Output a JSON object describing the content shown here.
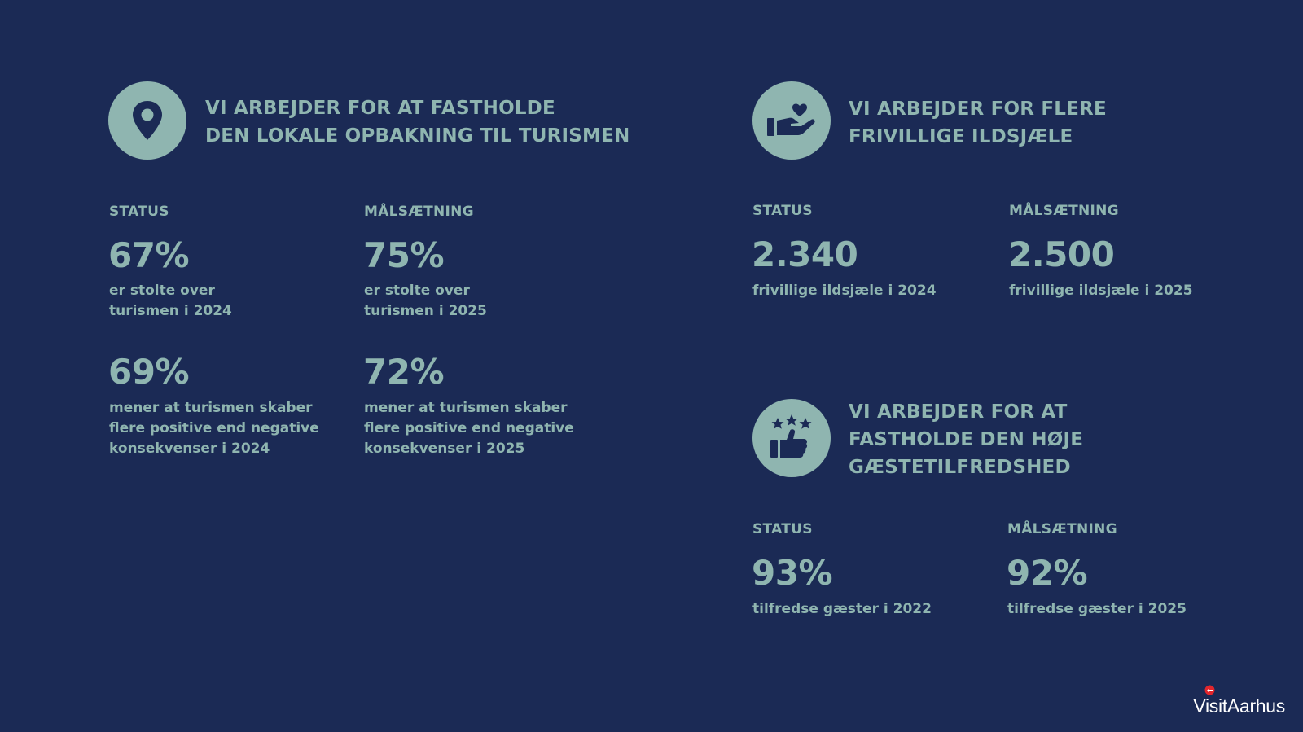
{
  "sections": [
    {
      "icon": "location-pin-icon",
      "heading_lines": [
        "VI ARBEJDER FOR AT FASTHOLDE",
        "DEN LOKALE OPBAKNING TIL TURISMEN"
      ],
      "status_label": "STATUS",
      "goal_label": "MÅLSÆTNING",
      "metrics": [
        {
          "status_value": "67%",
          "status_desc": "er stolte over turismen i 2024",
          "goal_value": "75%",
          "goal_desc": "er stolte over turismen i 2025"
        },
        {
          "status_value": "69%",
          "status_desc": "mener at turismen skaber flere positive end negative konsekvenser i 2024",
          "goal_value": "72%",
          "goal_desc": "mener at turismen skaber flere positive end negative konsekvenser i 2025"
        }
      ]
    },
    {
      "icon": "hand-heart-icon",
      "heading_lines": [
        "VI ARBEJDER FOR FLERE",
        "FRIVILLIGE ILDSJÆLE"
      ],
      "status_label": "STATUS",
      "goal_label": "MÅLSÆTNING",
      "metrics": [
        {
          "status_value": "2.340",
          "status_desc": "frivillige ildsjæle i 2024",
          "goal_value": "2.500",
          "goal_desc": "frivillige ildsjæle i 2025"
        }
      ]
    },
    {
      "icon": "thumbs-up-stars-icon",
      "heading_lines": [
        "VI ARBEJDER FOR AT",
        "FASTHOLDE DEN HØJE",
        "GÆSTETILFREDSHED"
      ],
      "status_label": "STATUS",
      "goal_label": "MÅLSÆTNING",
      "metrics": [
        {
          "status_value": "93%",
          "status_desc": "tilfredse gæster i 2022",
          "goal_value": "92%",
          "goal_desc": "tilfredse gæster i 2025"
        }
      ]
    }
  ],
  "logo": {
    "text": "VisitAarhus"
  },
  "colors": {
    "background": "#1b2a55",
    "accent": "#8fb5b0",
    "logo_mark": "#e2262c"
  }
}
